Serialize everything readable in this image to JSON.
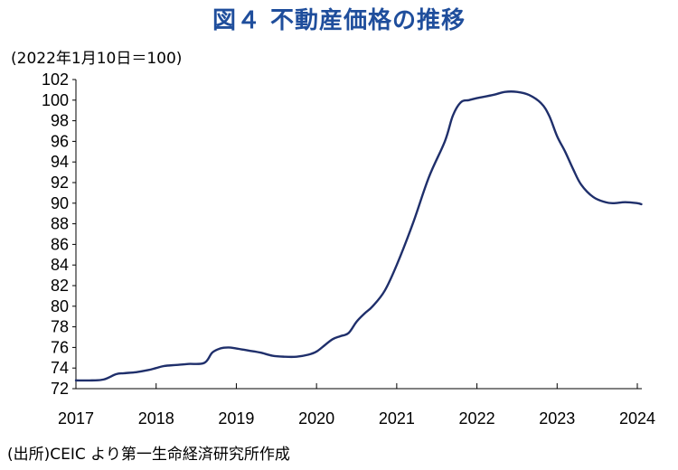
{
  "title": "図４ 不動産価格の推移",
  "unit_note": "(2022年1月10日＝100)",
  "source": "(出所)CEIC より第一生命経済研究所作成",
  "chart_data": {
    "type": "line",
    "title": "図４ 不動産価格の推移",
    "ylabel": "(2022年1月10日＝100)",
    "xlabel": "",
    "xlim": [
      2017.0,
      2024.05
    ],
    "ylim": [
      72,
      102
    ],
    "x_ticks": [
      2017,
      2018,
      2019,
      2020,
      2021,
      2022,
      2023,
      2024
    ],
    "x_tick_labels": [
      "2017",
      "2018",
      "2019",
      "2020",
      "2021",
      "2022",
      "2023",
      "2024"
    ],
    "y_ticks": [
      72,
      74,
      76,
      78,
      80,
      82,
      84,
      86,
      88,
      90,
      92,
      94,
      96,
      98,
      100,
      102
    ],
    "y_tick_labels": [
      "72",
      "74",
      "76",
      "78",
      "80",
      "82",
      "84",
      "86",
      "88",
      "90",
      "92",
      "94",
      "96",
      "98",
      "100",
      "102"
    ],
    "grid": false,
    "legend": "none",
    "line_color": "#1f2f6b",
    "series": [
      {
        "x": [
          2017.0,
          2017.2,
          2017.35,
          2017.5,
          2017.6,
          2017.75,
          2017.9,
          2018.0,
          2018.1,
          2018.25,
          2018.4,
          2018.6,
          2018.7,
          2018.8,
          2018.9,
          2019.0,
          2019.15,
          2019.3,
          2019.45,
          2019.6,
          2019.75,
          2019.9,
          2020.0,
          2020.1,
          2020.2,
          2020.3,
          2020.4,
          2020.5,
          2020.6,
          2020.7,
          2020.85,
          2021.0,
          2021.2,
          2021.4,
          2021.6,
          2021.7,
          2021.8,
          2021.9,
          2022.0,
          2022.2,
          2022.35,
          2022.5,
          2022.65,
          2022.8,
          2022.9,
          2023.0,
          2023.1,
          2023.2,
          2023.3,
          2023.45,
          2023.6,
          2023.7,
          2023.85,
          2024.0,
          2024.05
        ],
        "y": [
          72.8,
          72.8,
          72.9,
          73.4,
          73.5,
          73.6,
          73.8,
          74.0,
          74.2,
          74.3,
          74.4,
          74.5,
          75.5,
          75.9,
          76.0,
          75.9,
          75.7,
          75.5,
          75.2,
          75.1,
          75.1,
          75.3,
          75.6,
          76.2,
          76.8,
          77.1,
          77.4,
          78.5,
          79.3,
          80.0,
          81.5,
          84.0,
          88.0,
          92.5,
          96.0,
          98.5,
          99.8,
          100.0,
          100.2,
          100.5,
          100.8,
          100.8,
          100.5,
          99.7,
          98.5,
          96.5,
          95.0,
          93.3,
          91.8,
          90.6,
          90.1,
          90.0,
          90.1,
          90.0,
          89.9
        ]
      }
    ]
  }
}
